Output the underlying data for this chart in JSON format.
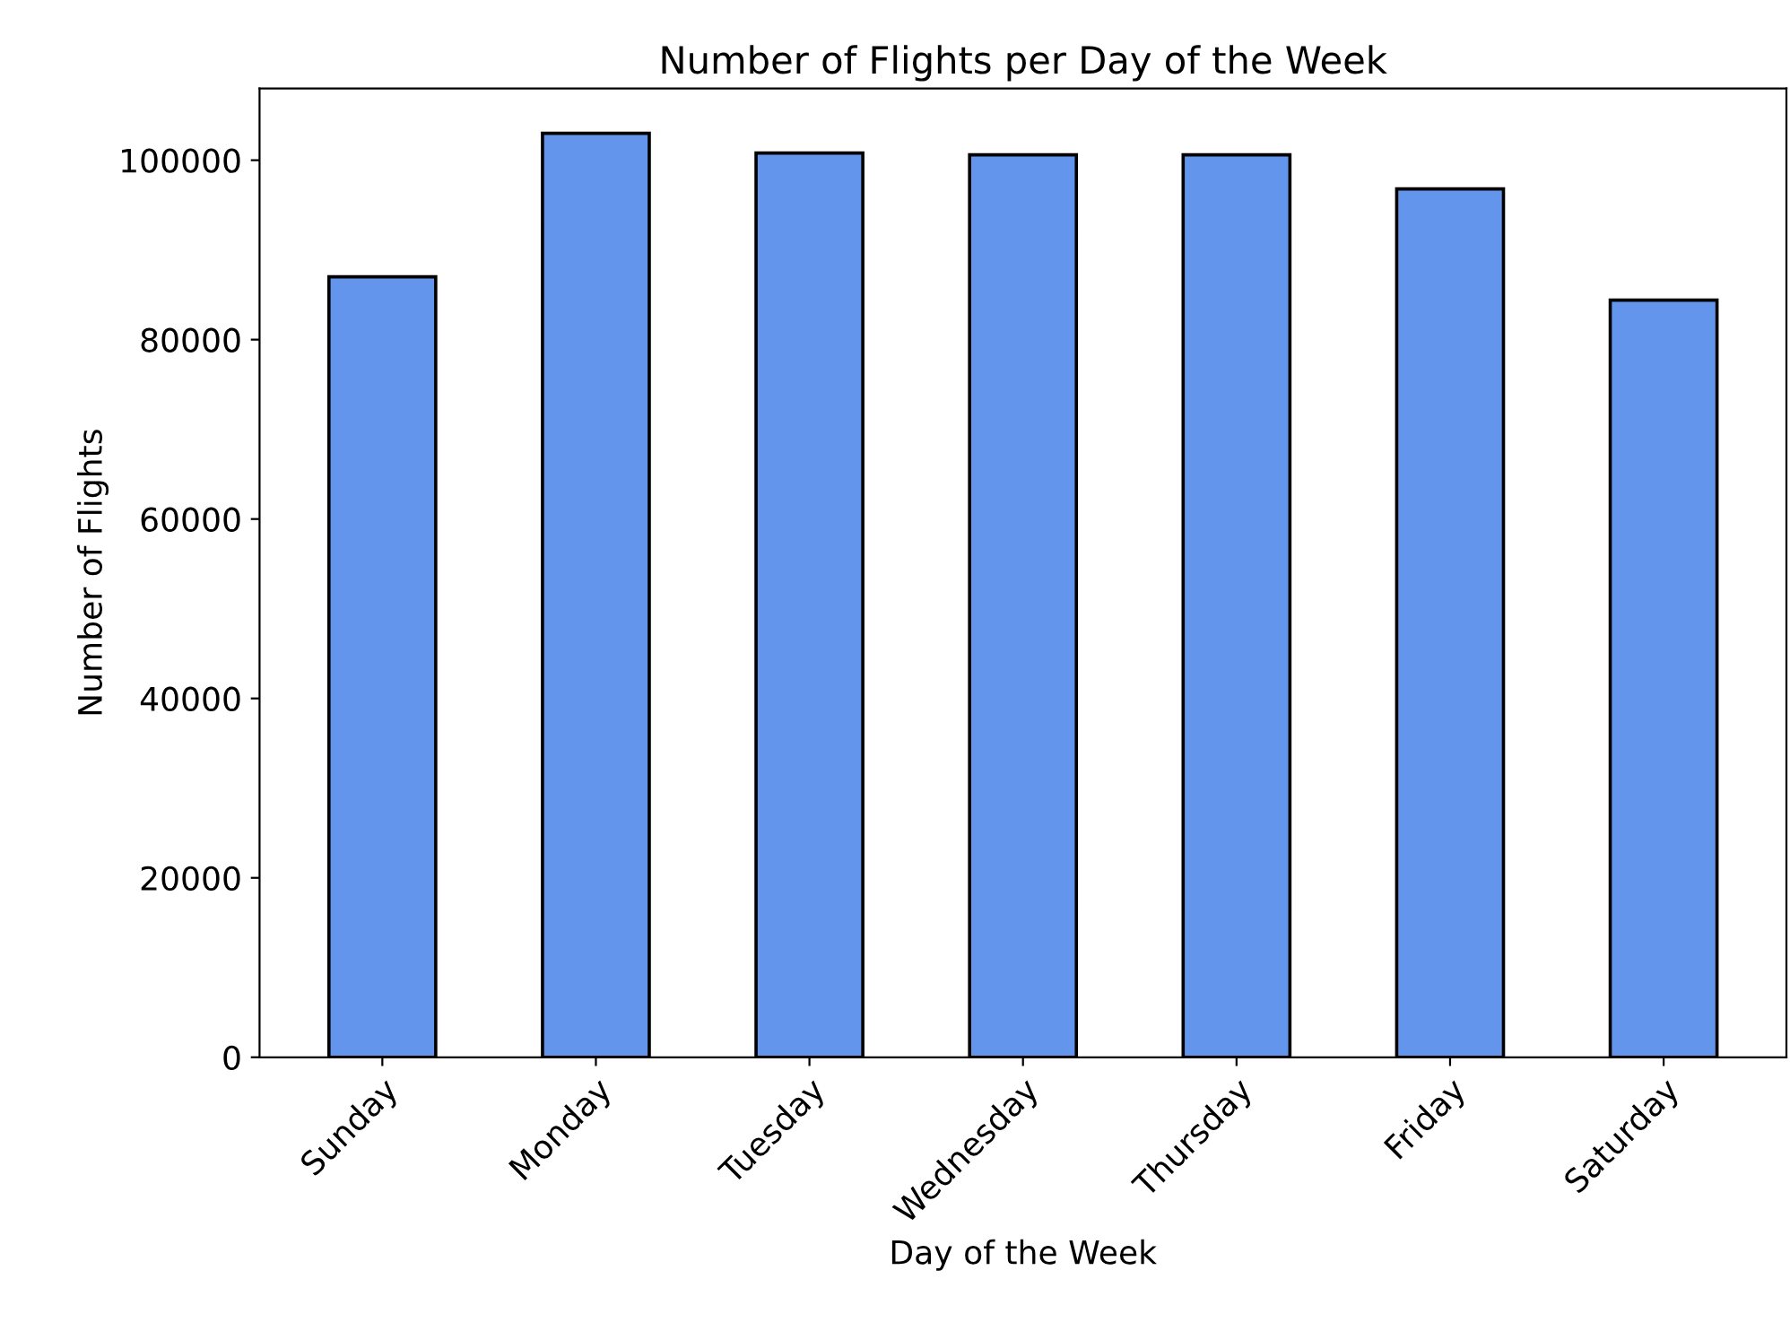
{
  "chart_data": {
    "type": "bar",
    "title": "Number of Flights per Day of the Week",
    "xlabel": "Day of the Week",
    "ylabel": "Number of Flights",
    "categories": [
      "Sunday",
      "Monday",
      "Tuesday",
      "Wednesday",
      "Thursday",
      "Friday",
      "Saturday"
    ],
    "values": [
      87000,
      103000,
      100800,
      100600,
      100600,
      96800,
      84400
    ],
    "color": "#6495ed",
    "ylim": [
      0,
      108000
    ],
    "yticks": [
      0,
      20000,
      40000,
      60000,
      80000,
      100000
    ],
    "grid": false,
    "legend": false
  }
}
